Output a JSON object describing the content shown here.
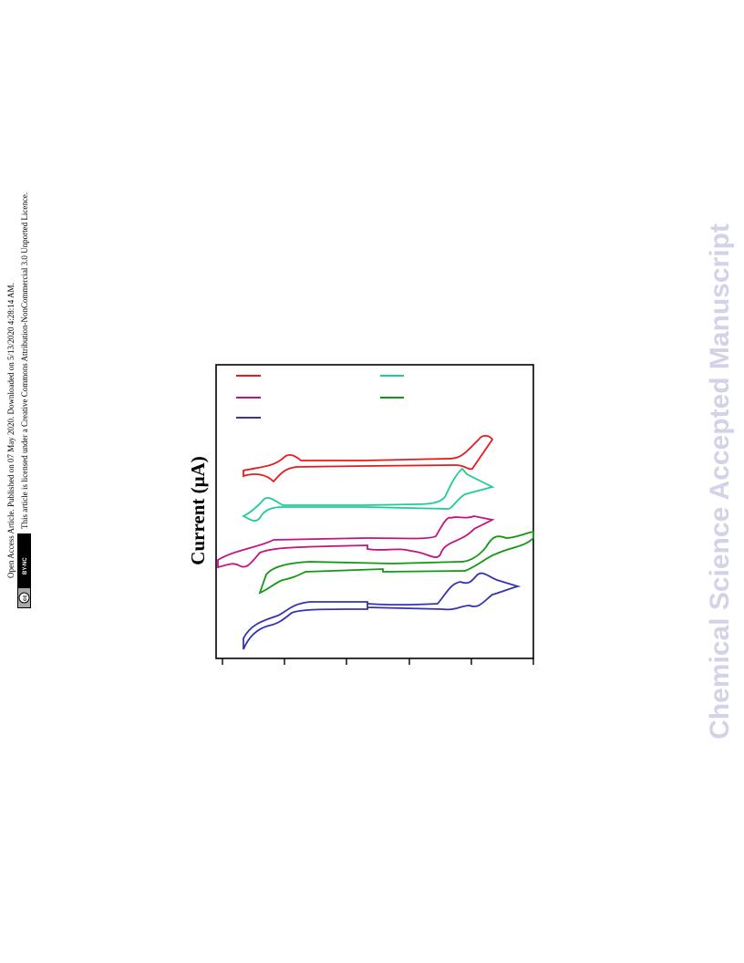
{
  "side_notes": [
    "Open Access Article. Published on 07 May 2020. Downloaded on 5/13/2020 4:28:14 AM.",
    "This article is licensed under a Creative Commons Attribution-NonCommercial 3.0 Unported Licence."
  ],
  "badge": {
    "cc": "cc",
    "license": "BY-NC"
  },
  "watermark": "Chemical Science Accepted Manuscript",
  "figure": {
    "y_axis_label": "Current  (μA)"
  }
}
